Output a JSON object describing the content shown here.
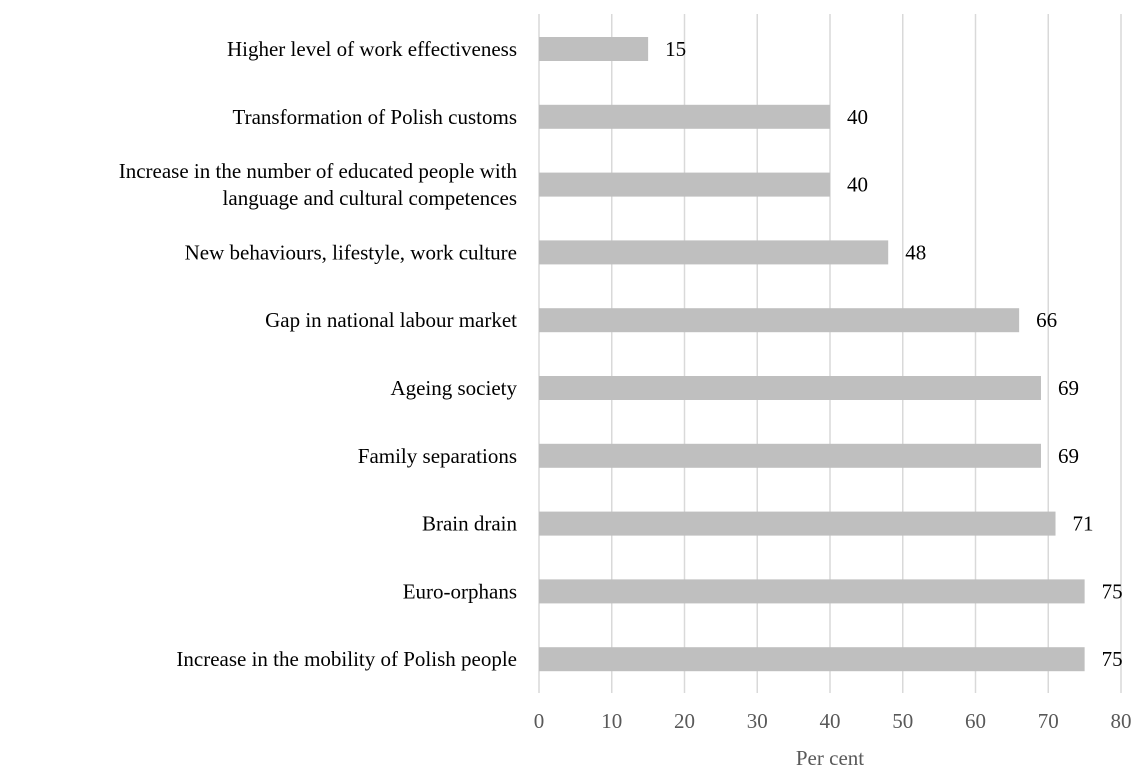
{
  "chart_data": {
    "type": "bar",
    "orientation": "horizontal",
    "categories": [
      [
        "Higher level of work effectiveness"
      ],
      [
        "Transformation of Polish customs"
      ],
      [
        "Increase in the number of educated people with",
        "language and cultural competences"
      ],
      [
        "New behaviours, lifestyle, work culture"
      ],
      [
        "Gap in national labour market"
      ],
      [
        "Ageing society"
      ],
      [
        "Family separations"
      ],
      [
        "Brain drain"
      ],
      [
        "Euro-orphans"
      ],
      [
        "Increase in the mobility of Polish people"
      ]
    ],
    "values": [
      15,
      40,
      40,
      48,
      66,
      69,
      69,
      71,
      75,
      75
    ],
    "xlabel": "Per cent",
    "xlim": [
      0,
      80
    ],
    "xticks": [
      0,
      10,
      20,
      30,
      40,
      50,
      60,
      70,
      80
    ],
    "grid": true,
    "data_labels": true,
    "colors": {
      "bar": "#bfbfbf",
      "grid": "#d9d9d9",
      "tick_text": "#595959",
      "label_text": "#000000"
    }
  }
}
